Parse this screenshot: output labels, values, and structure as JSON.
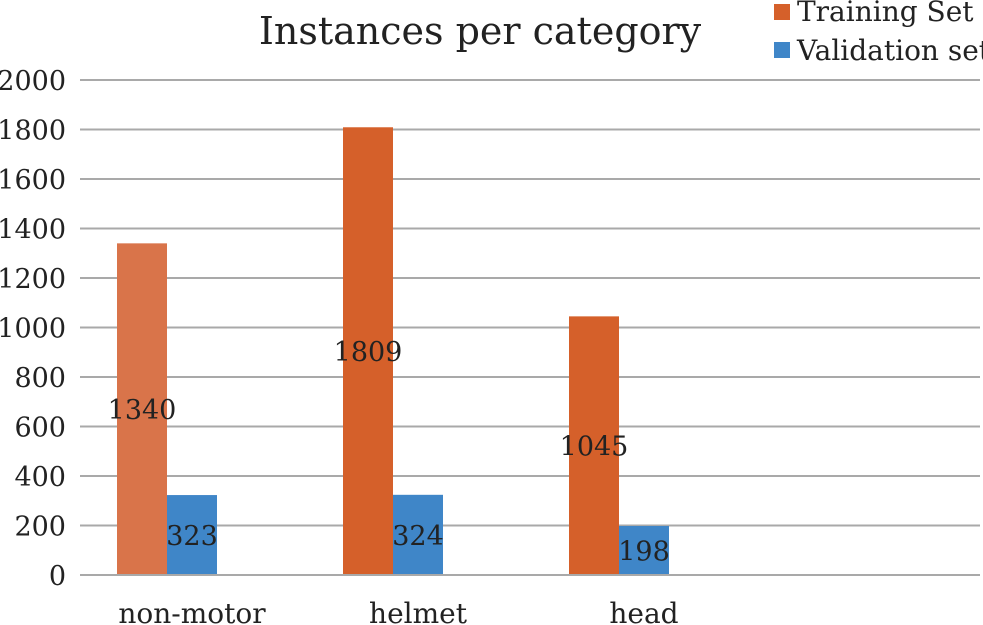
{
  "chart_data": {
    "type": "bar",
    "title": "Instances per category",
    "xlabel": "",
    "ylabel": "",
    "categories": [
      "non-motor",
      "helmet",
      "head"
    ],
    "series": [
      {
        "name": "Training Set",
        "values": [
          1340,
          1809,
          1045
        ],
        "color": "#d5602a",
        "first_bar_color": "#d9744a"
      },
      {
        "name": "Validation set",
        "values": [
          323,
          324,
          198
        ],
        "color": "#3f86c8"
      }
    ],
    "ylim": [
      0,
      2000
    ],
    "yticks": [
      0,
      200,
      400,
      600,
      800,
      1000,
      1200,
      1400,
      1600,
      1800,
      2000
    ],
    "grid": true,
    "legend_position": "top-right",
    "data_labels": true
  }
}
